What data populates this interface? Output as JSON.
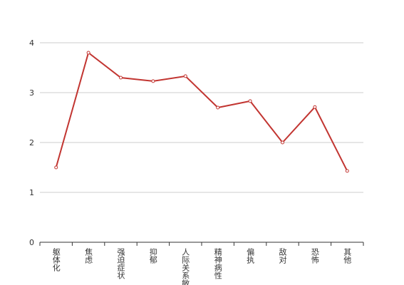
{
  "chart_data": {
    "type": "line",
    "categories": [
      "躯体化",
      "焦虑",
      "强迫症状",
      "抑郁",
      "人际关系敏感",
      "精神病性",
      "偏执",
      "敌对",
      "恐怖",
      "其他"
    ],
    "values": [
      1.5,
      3.8,
      3.3,
      3.23,
      3.33,
      2.7,
      2.83,
      2.0,
      2.71,
      1.43
    ],
    "color": "#c23531",
    "ylim": [
      0,
      4
    ],
    "yticks": [
      0,
      1,
      2,
      3,
      4
    ],
    "grid": true
  }
}
